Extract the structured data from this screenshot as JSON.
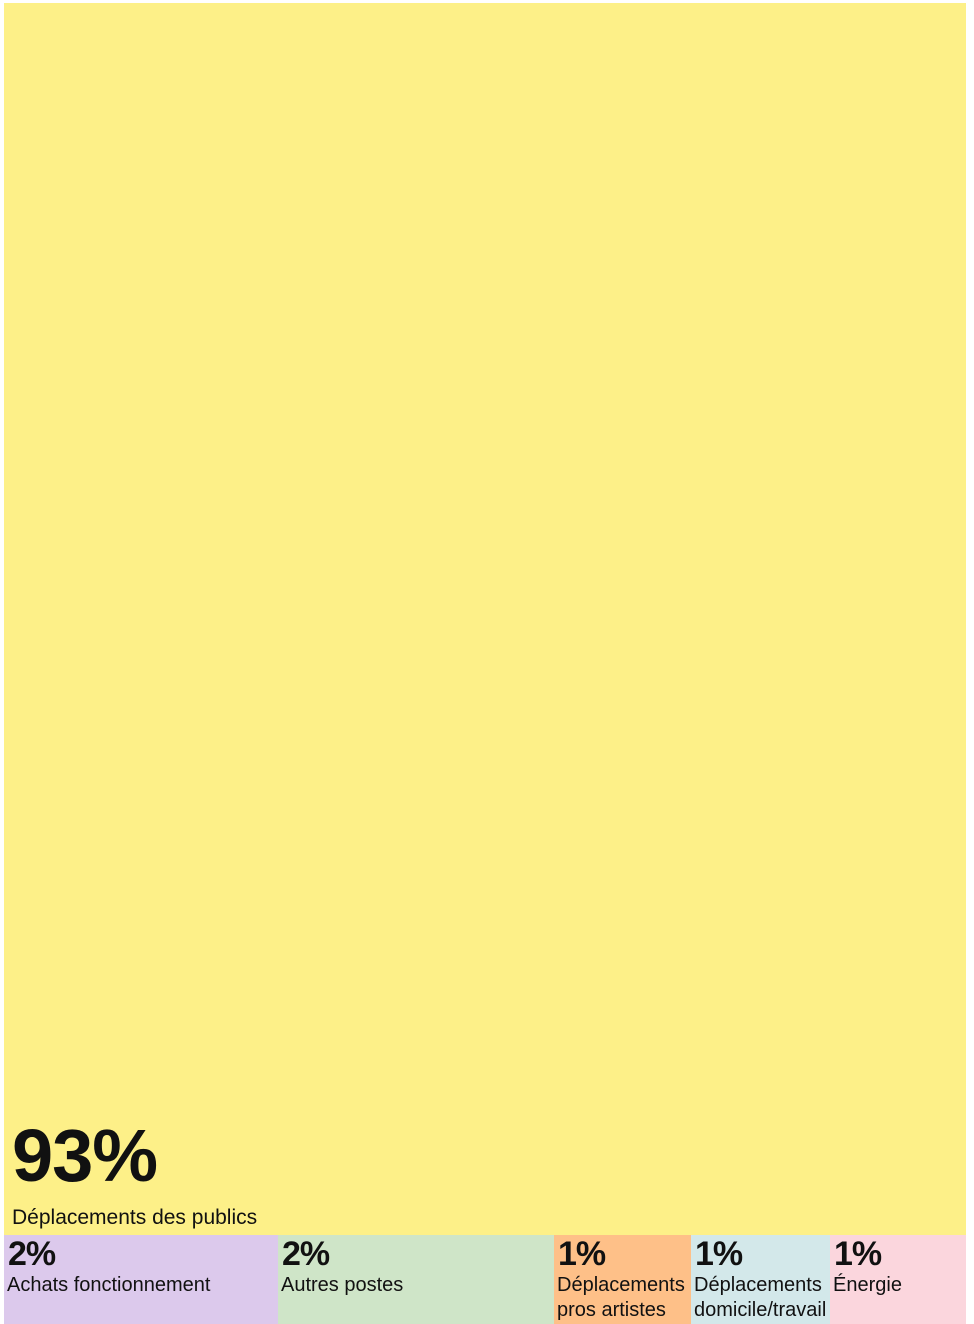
{
  "chart_data": {
    "type": "treemap",
    "categories": [
      "Déplacements des publics",
      "Achats fonctionnement",
      "Autres postes",
      "Déplacements pros artistes",
      "Déplacements domicile/travail",
      "Énergie"
    ],
    "values": [
      93,
      2,
      2,
      1,
      1,
      1
    ],
    "value_labels": [
      "93%",
      "2%",
      "2%",
      "1%",
      "1%",
      "1%"
    ],
    "colors": [
      "#fdf088",
      "#dcc9ec",
      "#cfe5c8",
      "#fec088",
      "#d3e8ea",
      "#fbd6dd"
    ]
  }
}
